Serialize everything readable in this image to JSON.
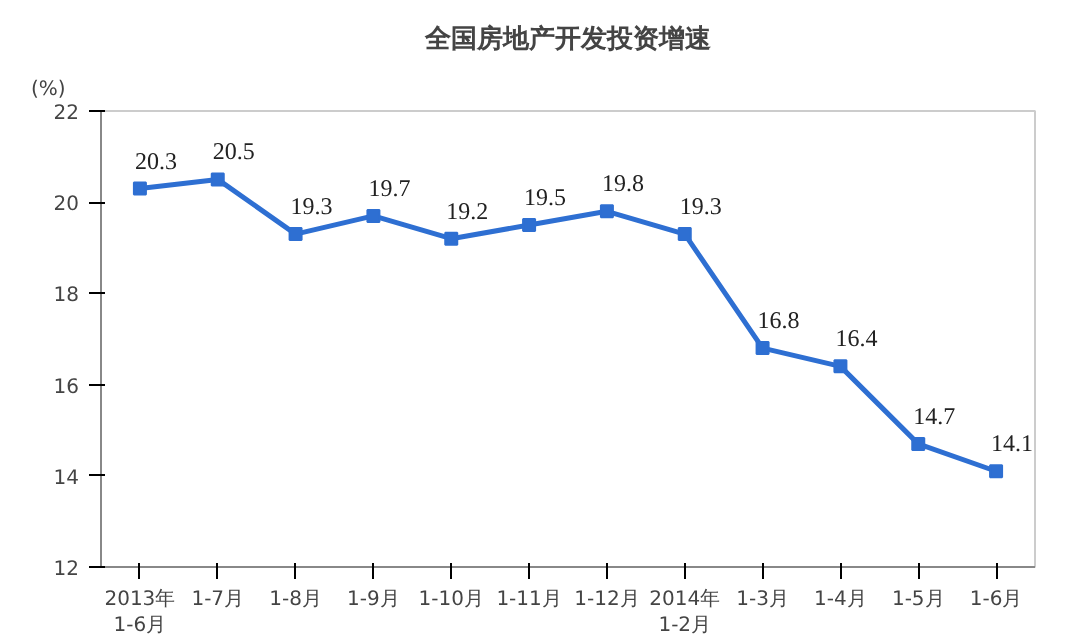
{
  "chart_data": {
    "type": "line",
    "title": "全国房地产开发投资增速",
    "ylabel": "(%)",
    "categories": [
      "2013年\n1-6月",
      "1-7月",
      "1-8月",
      "1-9月",
      "1-10月",
      "1-11月",
      "1-12月",
      "2014年\n1-2月",
      "1-3月",
      "1-4月",
      "1-5月",
      "1-6月"
    ],
    "series": [
      {
        "color": "#2e6fd2",
        "values": [
          20.3,
          20.5,
          19.3,
          19.7,
          19.2,
          19.5,
          19.8,
          19.3,
          16.8,
          16.4,
          14.7,
          14.1
        ]
      }
    ],
    "ylim": [
      12,
      22
    ],
    "yticks": [
      12,
      14,
      16,
      18,
      20,
      22
    ],
    "grid": false,
    "marker": "square",
    "line_style": "solid",
    "data_labels": true
  }
}
